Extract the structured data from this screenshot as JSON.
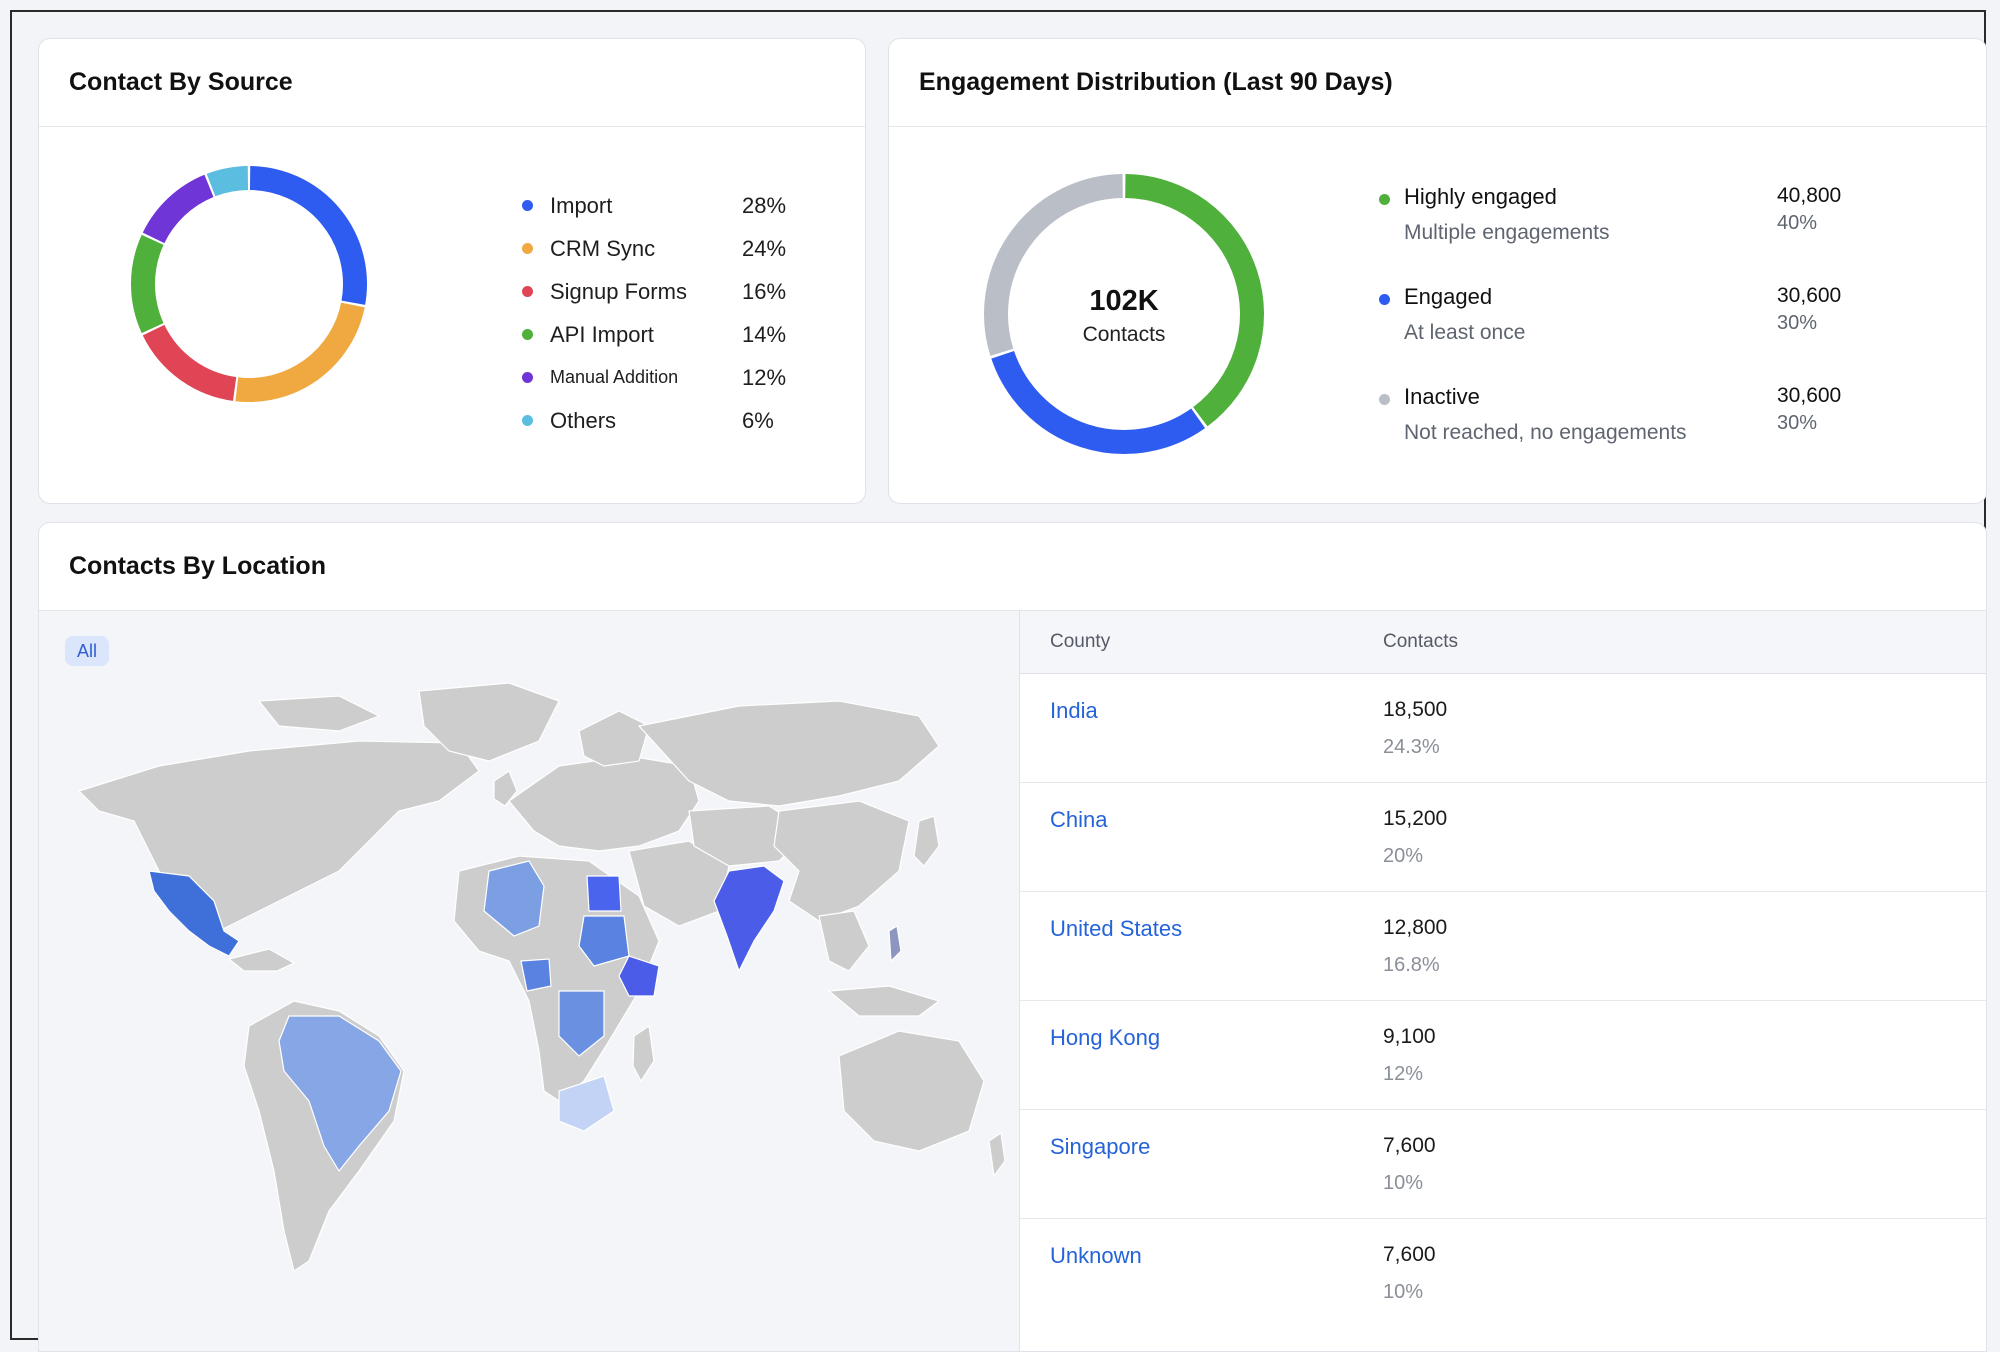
{
  "source_card": {
    "title": "Contact By Source",
    "items": [
      {
        "label": "Import",
        "pct": "28%",
        "value": 28,
        "color": "#2f5cf0"
      },
      {
        "label": "CRM Sync",
        "pct": "24%",
        "value": 24,
        "color": "#f0a840"
      },
      {
        "label": "Signup Forms",
        "pct": "16%",
        "value": 16,
        "color": "#df4555"
      },
      {
        "label": "API Import",
        "pct": "14%",
        "value": 14,
        "color": "#4fb03c"
      },
      {
        "label": "Manual Addition",
        "pct": "12%",
        "value": 12,
        "color": "#6f35d6"
      },
      {
        "label": "Others",
        "pct": "6%",
        "value": 6,
        "color": "#5bbde0"
      }
    ]
  },
  "engagement_card": {
    "title": "Engagement Distribution (Last 90 Days)",
    "center_value": "102K",
    "center_label": "Contacts",
    "items": [
      {
        "name": "Highly engaged",
        "sub": "Multiple engagements",
        "count": "40,800",
        "pct": "40%",
        "value": 40,
        "color": "#4fb03c"
      },
      {
        "name": "Engaged",
        "sub": "At least once",
        "count": "30,600",
        "pct": "30%",
        "value": 30,
        "color": "#2f5cf0"
      },
      {
        "name": "Inactive",
        "sub": "Not reached, no engagements",
        "count": "30,600",
        "pct": "30%",
        "value": 30,
        "color": "#b9bec7"
      }
    ]
  },
  "location_card": {
    "title": "Contacts By Location",
    "filter_chip": "All",
    "table": {
      "col_country": "County",
      "col_contacts": "Contacts",
      "rows": [
        {
          "country": "India",
          "count": "18,500",
          "pct": "24.3%"
        },
        {
          "country": "China",
          "count": "15,200",
          "pct": "20%"
        },
        {
          "country": "United States",
          "count": "12,800",
          "pct": "16.8%"
        },
        {
          "country": "Hong Kong",
          "count": "9,100",
          "pct": "12%"
        },
        {
          "country": "Singapore",
          "count": "7,600",
          "pct": "10%"
        },
        {
          "country": "Unknown",
          "count": "7,600",
          "pct": "10%"
        }
      ]
    }
  }
}
